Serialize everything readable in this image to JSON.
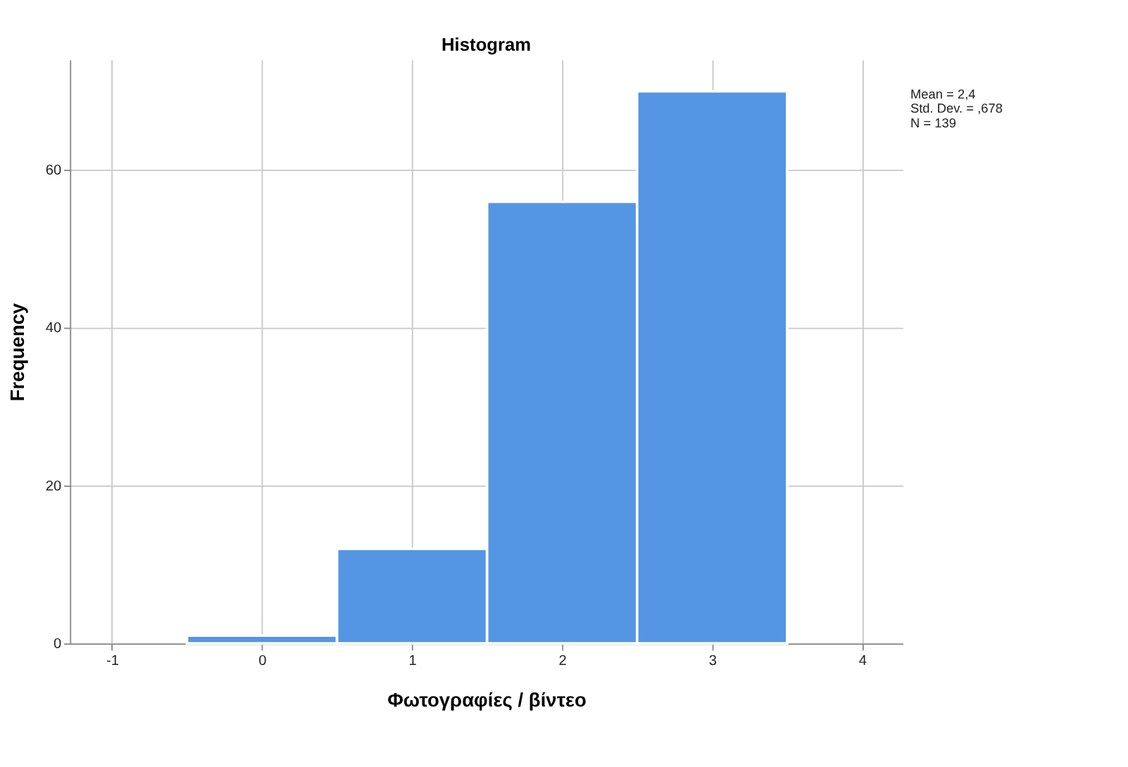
{
  "chart_data": {
    "type": "histogram",
    "title": "Histogram",
    "xlabel": "Φωτογραφίες / βίντεο",
    "ylabel": "Frequency",
    "bins": [
      -0.5,
      0.5,
      1.5,
      2.5,
      3.5
    ],
    "values": [
      1,
      12,
      56,
      70
    ],
    "color": "#5496e4",
    "xlim": [
      -1.28,
      4.27
    ],
    "xticks": [
      -1,
      0,
      1,
      2,
      3,
      4
    ],
    "ylim": [
      0,
      74
    ],
    "yticks": [
      0,
      20,
      40,
      60
    ],
    "grid": true,
    "annotations": [
      "Mean = 2,4",
      "Std. Dev. = ,678",
      "N = 139"
    ]
  }
}
